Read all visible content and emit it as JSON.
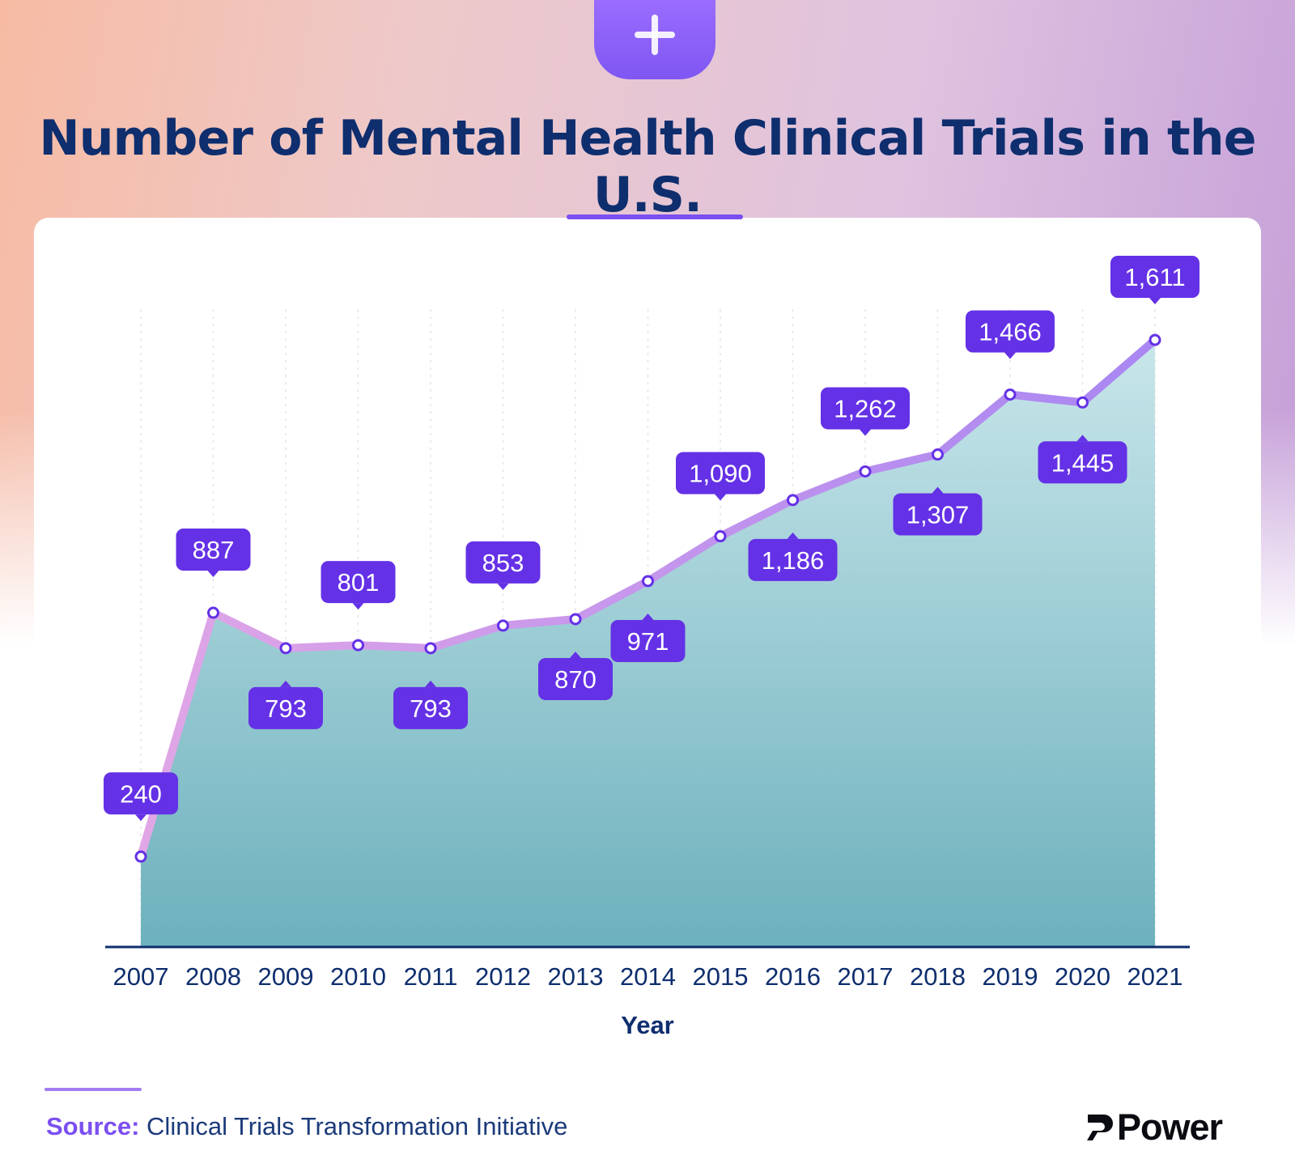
{
  "title": "Number of Mental Health Clinical Trials in the U.S.",
  "header_icon": "plus-icon",
  "colors": {
    "title": "#0e2e6e",
    "line": "#b48cf0",
    "label_bg": "#6431e6",
    "area_top": "#c8e6ea",
    "area_bottom": "#6db1bd",
    "axis": "#0e2e6e"
  },
  "chart_data": {
    "type": "area",
    "title": "Number of Mental Health Clinical Trials in the U.S.",
    "xlabel": "Year",
    "ylabel": "",
    "categories": [
      "2007",
      "2008",
      "2009",
      "2010",
      "2011",
      "2012",
      "2013",
      "2014",
      "2015",
      "2016",
      "2017",
      "2018",
      "2019",
      "2020",
      "2021"
    ],
    "values": [
      240,
      887,
      793,
      801,
      793,
      853,
      870,
      971,
      1090,
      1186,
      1262,
      1307,
      1466,
      1445,
      1611
    ],
    "data_labels": [
      "240",
      "887",
      "793",
      "801",
      "793",
      "853",
      "870",
      "971",
      "1,090",
      "1,186",
      "1,262",
      "1,307",
      "1,466",
      "1,445",
      "1,611"
    ],
    "label_positions": [
      "above",
      "above",
      "below",
      "above",
      "below",
      "above",
      "below",
      "below",
      "above",
      "below",
      "above",
      "below",
      "above",
      "below",
      "above"
    ],
    "ylim": [
      0,
      1700
    ],
    "grid": "vertical dotted",
    "legend": "none"
  },
  "footer": {
    "source_label": "Source:",
    "source_text": "Clinical Trials Transformation Initiative",
    "brand": "Power",
    "brand_icon": "power-logo-icon"
  }
}
